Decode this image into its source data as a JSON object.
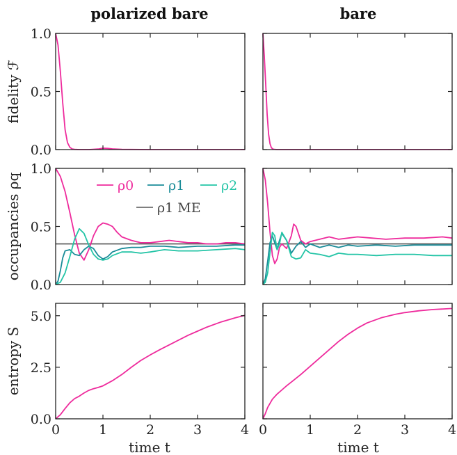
{
  "colors": {
    "rho0": "#ee2a9c",
    "rho1": "#1a8c98",
    "rho2": "#23c4a6",
    "me": "#555555",
    "axis": "#222222"
  },
  "columns": [
    "polarized bare",
    "bare"
  ],
  "ylabels": [
    "fidelity ℱ",
    "occupancies ρq",
    "entropy S"
  ],
  "xlabel": "time t",
  "legend": {
    "rho0": "ρ0",
    "rho1": "ρ1",
    "rho2": "ρ2",
    "me": "ρ1 ME"
  },
  "chart_data": [
    {
      "type": "line",
      "column": "polarized bare",
      "ylabel": "fidelity ℱ",
      "xlim": [
        0,
        4
      ],
      "ylim": [
        0,
        1
      ],
      "yticks": [
        "0.0",
        "0.5",
        "1.0"
      ],
      "xticks": [
        "0",
        "1",
        "2",
        "3",
        "4"
      ],
      "series": [
        {
          "color": "rho0",
          "x": [
            0,
            0.05,
            0.1,
            0.15,
            0.2,
            0.25,
            0.3,
            0.35,
            0.4,
            0.5,
            0.7,
            0.9,
            1.0,
            1.1,
            1.2,
            1.4,
            2,
            3,
            4
          ],
          "y": [
            1.0,
            0.9,
            0.67,
            0.4,
            0.17,
            0.06,
            0.02,
            0.005,
            0.002,
            0.0,
            0.0,
            0.005,
            0.012,
            0.01,
            0.006,
            0.002,
            0.0,
            0.0,
            0.0
          ]
        }
      ]
    },
    {
      "type": "line",
      "column": "bare",
      "ylabel": "",
      "xlim": [
        0,
        4
      ],
      "ylim": [
        0,
        1
      ],
      "yticks": [],
      "xticks": [
        "0",
        "1",
        "2",
        "3",
        "4"
      ],
      "series": [
        {
          "color": "rho0",
          "x": [
            0,
            0.03,
            0.06,
            0.09,
            0.12,
            0.15,
            0.18,
            0.22,
            0.3,
            0.5,
            1,
            2,
            3,
            4
          ],
          "y": [
            1.0,
            0.8,
            0.55,
            0.3,
            0.13,
            0.05,
            0.015,
            0.003,
            0.0,
            0.0,
            0.0,
            0.0,
            0.0,
            0.0
          ]
        }
      ]
    },
    {
      "type": "line",
      "column": "polarized bare",
      "ylabel": "occupancies ρq",
      "xlim": [
        0,
        4
      ],
      "ylim": [
        0,
        1
      ],
      "yticks": [
        "0.0",
        "0.5",
        "1.0"
      ],
      "xticks": [
        "0",
        "1",
        "2",
        "3",
        "4"
      ],
      "hline": {
        "y": 0.35,
        "color": "me"
      },
      "series": [
        {
          "name": "ρ0",
          "color": "rho0",
          "x": [
            0,
            0.1,
            0.2,
            0.3,
            0.4,
            0.5,
            0.6,
            0.7,
            0.8,
            0.9,
            1.0,
            1.1,
            1.2,
            1.3,
            1.4,
            1.6,
            1.8,
            2.0,
            2.2,
            2.4,
            2.6,
            2.8,
            3.0,
            3.2,
            3.4,
            3.6,
            3.8,
            4.0
          ],
          "y": [
            1.0,
            0.93,
            0.8,
            0.62,
            0.43,
            0.27,
            0.21,
            0.3,
            0.42,
            0.5,
            0.53,
            0.52,
            0.5,
            0.45,
            0.41,
            0.38,
            0.36,
            0.36,
            0.37,
            0.38,
            0.37,
            0.36,
            0.36,
            0.35,
            0.35,
            0.36,
            0.36,
            0.35
          ]
        },
        {
          "name": "ρ1",
          "color": "rho1",
          "x": [
            0,
            0.05,
            0.1,
            0.15,
            0.2,
            0.3,
            0.4,
            0.5,
            0.6,
            0.7,
            0.8,
            0.9,
            1.0,
            1.1,
            1.2,
            1.4,
            1.6,
            1.8,
            2.0,
            2.3,
            2.6,
            3.0,
            3.4,
            3.8,
            4.0
          ],
          "y": [
            0.0,
            0.03,
            0.12,
            0.23,
            0.29,
            0.3,
            0.26,
            0.25,
            0.3,
            0.33,
            0.31,
            0.25,
            0.22,
            0.24,
            0.28,
            0.31,
            0.32,
            0.32,
            0.33,
            0.33,
            0.32,
            0.33,
            0.33,
            0.34,
            0.34
          ]
        },
        {
          "name": "ρ2",
          "color": "rho2",
          "x": [
            0,
            0.1,
            0.2,
            0.3,
            0.4,
            0.5,
            0.6,
            0.7,
            0.8,
            0.9,
            1.0,
            1.1,
            1.2,
            1.4,
            1.6,
            1.8,
            2.0,
            2.3,
            2.6,
            3.0,
            3.4,
            3.8,
            4.0
          ],
          "y": [
            0.0,
            0.02,
            0.1,
            0.24,
            0.39,
            0.48,
            0.44,
            0.34,
            0.26,
            0.22,
            0.21,
            0.22,
            0.25,
            0.28,
            0.28,
            0.27,
            0.28,
            0.3,
            0.29,
            0.29,
            0.3,
            0.31,
            0.3
          ]
        }
      ]
    },
    {
      "type": "line",
      "column": "bare",
      "ylabel": "",
      "xlim": [
        0,
        4
      ],
      "ylim": [
        0,
        1
      ],
      "yticks": [],
      "xticks": [
        "0",
        "1",
        "2",
        "3",
        "4"
      ],
      "hline": {
        "y": 0.35,
        "color": "me"
      },
      "series": [
        {
          "name": "ρ0",
          "color": "rho0",
          "x": [
            0,
            0.05,
            0.1,
            0.15,
            0.2,
            0.25,
            0.3,
            0.35,
            0.4,
            0.5,
            0.6,
            0.65,
            0.7,
            0.8,
            0.9,
            1.0,
            1.2,
            1.4,
            1.6,
            1.8,
            2.0,
            2.3,
            2.6,
            3.0,
            3.4,
            3.8,
            4.0
          ],
          "y": [
            1.0,
            0.9,
            0.7,
            0.45,
            0.25,
            0.18,
            0.22,
            0.32,
            0.35,
            0.31,
            0.42,
            0.52,
            0.5,
            0.38,
            0.35,
            0.37,
            0.39,
            0.41,
            0.39,
            0.4,
            0.41,
            0.4,
            0.39,
            0.4,
            0.4,
            0.41,
            0.4
          ]
        },
        {
          "name": "ρ1",
          "color": "rho1",
          "x": [
            0,
            0.05,
            0.1,
            0.15,
            0.2,
            0.25,
            0.3,
            0.35,
            0.4,
            0.5,
            0.6,
            0.7,
            0.8,
            0.9,
            1.0,
            1.2,
            1.4,
            1.6,
            1.8,
            2.0,
            2.4,
            2.8,
            3.2,
            3.6,
            4.0
          ],
          "y": [
            0.0,
            0.05,
            0.2,
            0.36,
            0.42,
            0.36,
            0.3,
            0.38,
            0.44,
            0.38,
            0.27,
            0.33,
            0.37,
            0.32,
            0.35,
            0.32,
            0.34,
            0.32,
            0.34,
            0.33,
            0.34,
            0.33,
            0.34,
            0.34,
            0.34
          ]
        },
        {
          "name": "ρ2",
          "color": "rho2",
          "x": [
            0,
            0.05,
            0.1,
            0.15,
            0.2,
            0.25,
            0.3,
            0.35,
            0.4,
            0.5,
            0.6,
            0.7,
            0.8,
            0.9,
            1.0,
            1.2,
            1.4,
            1.6,
            1.8,
            2.0,
            2.4,
            2.8,
            3.2,
            3.6,
            4.0
          ],
          "y": [
            0.0,
            0.02,
            0.1,
            0.28,
            0.45,
            0.42,
            0.3,
            0.35,
            0.45,
            0.38,
            0.24,
            0.22,
            0.23,
            0.3,
            0.27,
            0.26,
            0.24,
            0.27,
            0.26,
            0.26,
            0.25,
            0.26,
            0.26,
            0.25,
            0.25
          ]
        }
      ]
    },
    {
      "type": "line",
      "column": "polarized bare",
      "ylabel": "entropy S",
      "xlim": [
        0,
        4
      ],
      "ylim": [
        0,
        5.6
      ],
      "yticks": [
        "0.0",
        "2.5",
        "5.0"
      ],
      "xticks": [
        "0",
        "1",
        "2",
        "3",
        "4"
      ],
      "series": [
        {
          "color": "rho0",
          "x": [
            0,
            0.1,
            0.2,
            0.3,
            0.4,
            0.5,
            0.6,
            0.7,
            0.8,
            0.9,
            1.0,
            1.2,
            1.4,
            1.6,
            1.8,
            2.0,
            2.2,
            2.5,
            2.8,
            3.0,
            3.2,
            3.5,
            3.8,
            4.0
          ],
          "y": [
            0.0,
            0.2,
            0.5,
            0.78,
            0.98,
            1.1,
            1.25,
            1.38,
            1.46,
            1.52,
            1.6,
            1.85,
            2.15,
            2.5,
            2.83,
            3.1,
            3.35,
            3.7,
            4.05,
            4.25,
            4.45,
            4.7,
            4.9,
            5.02
          ]
        }
      ]
    },
    {
      "type": "line",
      "column": "bare",
      "ylabel": "",
      "xlim": [
        0,
        4
      ],
      "ylim": [
        0,
        5.6
      ],
      "yticks": [],
      "xticks": [
        "0",
        "1",
        "2",
        "3",
        "4"
      ],
      "series": [
        {
          "color": "rho0",
          "x": [
            0,
            0.05,
            0.1,
            0.2,
            0.3,
            0.4,
            0.5,
            0.6,
            0.8,
            1.0,
            1.2,
            1.4,
            1.6,
            1.8,
            2.0,
            2.2,
            2.5,
            2.8,
            3.0,
            3.3,
            3.6,
            4.0
          ],
          "y": [
            0.0,
            0.25,
            0.55,
            0.95,
            1.2,
            1.4,
            1.6,
            1.78,
            2.15,
            2.55,
            2.95,
            3.35,
            3.75,
            4.1,
            4.4,
            4.65,
            4.9,
            5.07,
            5.15,
            5.24,
            5.3,
            5.35
          ]
        }
      ]
    }
  ]
}
